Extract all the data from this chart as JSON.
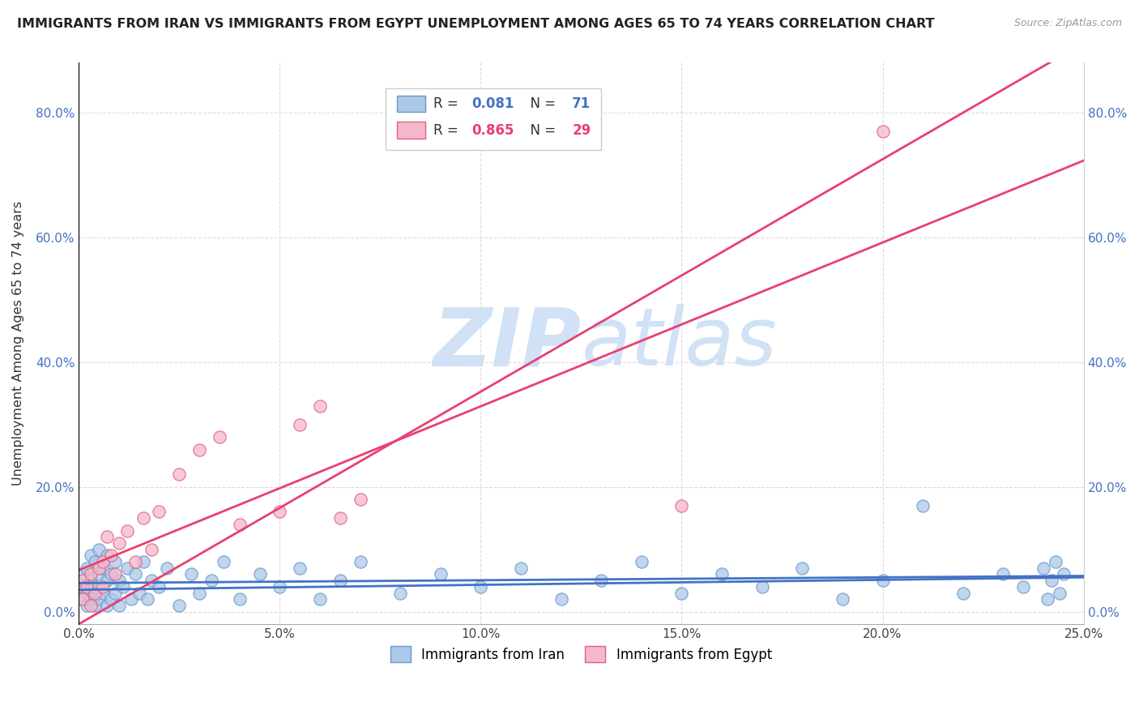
{
  "title": "IMMIGRANTS FROM IRAN VS IMMIGRANTS FROM EGYPT UNEMPLOYMENT AMONG AGES 65 TO 74 YEARS CORRELATION CHART",
  "source": "Source: ZipAtlas.com",
  "ylabel": "Unemployment Among Ages 65 to 74 years",
  "xlim": [
    0.0,
    0.25
  ],
  "ylim": [
    -0.02,
    0.88
  ],
  "xticks": [
    0.0,
    0.05,
    0.1,
    0.15,
    0.2,
    0.25
  ],
  "xticklabels": [
    "0.0%",
    "5.0%",
    "10.0%",
    "15.0%",
    "20.0%",
    "25.0%"
  ],
  "yticks": [
    0.0,
    0.2,
    0.4,
    0.6,
    0.8
  ],
  "yticklabels": [
    "0.0%",
    "20.0%",
    "40.0%",
    "60.0%",
    "80.0%"
  ],
  "iran_R": 0.081,
  "iran_N": 71,
  "egypt_R": 0.865,
  "egypt_N": 29,
  "iran_color": "#adc8e8",
  "iran_edge_color": "#6699cc",
  "egypt_color": "#f5b8cb",
  "egypt_edge_color": "#e06080",
  "iran_line_color": "#4472c4",
  "egypt_line_color": "#e84070",
  "watermark_color": "#ccdff5",
  "background_color": "#ffffff",
  "iran_x": [
    0.001,
    0.001,
    0.001,
    0.002,
    0.002,
    0.002,
    0.003,
    0.003,
    0.003,
    0.004,
    0.004,
    0.004,
    0.005,
    0.005,
    0.005,
    0.006,
    0.006,
    0.007,
    0.007,
    0.007,
    0.008,
    0.008,
    0.009,
    0.009,
    0.01,
    0.01,
    0.011,
    0.012,
    0.013,
    0.014,
    0.015,
    0.016,
    0.017,
    0.018,
    0.02,
    0.022,
    0.025,
    0.028,
    0.03,
    0.033,
    0.036,
    0.04,
    0.045,
    0.05,
    0.055,
    0.06,
    0.065,
    0.07,
    0.08,
    0.09,
    0.1,
    0.11,
    0.12,
    0.13,
    0.14,
    0.15,
    0.16,
    0.17,
    0.18,
    0.19,
    0.2,
    0.21,
    0.22,
    0.23,
    0.235,
    0.24,
    0.241,
    0.242,
    0.243,
    0.244,
    0.245
  ],
  "iran_y": [
    0.02,
    0.04,
    0.06,
    0.01,
    0.03,
    0.07,
    0.02,
    0.05,
    0.09,
    0.01,
    0.04,
    0.08,
    0.02,
    0.06,
    0.1,
    0.03,
    0.07,
    0.01,
    0.05,
    0.09,
    0.02,
    0.06,
    0.03,
    0.08,
    0.01,
    0.05,
    0.04,
    0.07,
    0.02,
    0.06,
    0.03,
    0.08,
    0.02,
    0.05,
    0.04,
    0.07,
    0.01,
    0.06,
    0.03,
    0.05,
    0.08,
    0.02,
    0.06,
    0.04,
    0.07,
    0.02,
    0.05,
    0.08,
    0.03,
    0.06,
    0.04,
    0.07,
    0.02,
    0.05,
    0.08,
    0.03,
    0.06,
    0.04,
    0.07,
    0.02,
    0.05,
    0.17,
    0.03,
    0.06,
    0.04,
    0.07,
    0.02,
    0.05,
    0.08,
    0.03,
    0.06
  ],
  "egypt_x": [
    0.001,
    0.001,
    0.002,
    0.003,
    0.003,
    0.004,
    0.005,
    0.006,
    0.006,
    0.007,
    0.008,
    0.009,
    0.01,
    0.012,
    0.014,
    0.016,
    0.018,
    0.02,
    0.025,
    0.03,
    0.035,
    0.04,
    0.05,
    0.055,
    0.06,
    0.065,
    0.07,
    0.15,
    0.2
  ],
  "egypt_y": [
    0.02,
    0.05,
    0.04,
    0.01,
    0.06,
    0.03,
    0.07,
    0.04,
    0.08,
    0.12,
    0.09,
    0.06,
    0.11,
    0.13,
    0.08,
    0.15,
    0.1,
    0.16,
    0.22,
    0.26,
    0.28,
    0.14,
    0.16,
    0.3,
    0.33,
    0.15,
    0.18,
    0.17,
    0.77
  ]
}
